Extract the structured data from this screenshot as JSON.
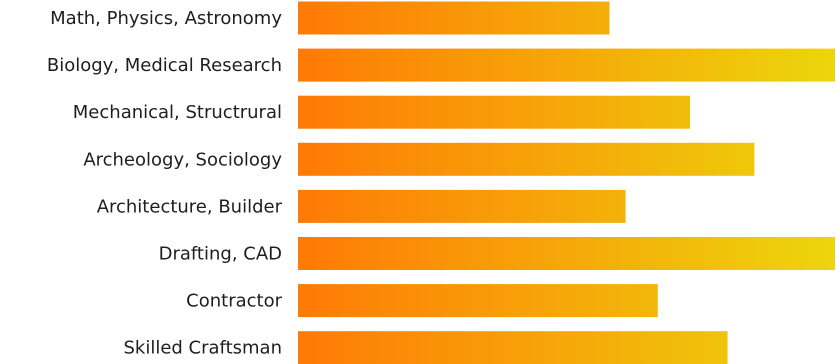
{
  "chart_data": {
    "type": "bar",
    "orientation": "horizontal",
    "categories": [
      "Math, Physics, Astronomy",
      "Biology, Medical Research",
      "Mechanical, Structrural",
      "Archeology, Sociology",
      "Architecture, Builder",
      "Drafting, CAD",
      "Contractor",
      "Skilled Craftsman"
    ],
    "values": [
      58,
      100,
      73,
      85,
      61,
      100,
      67,
      80
    ],
    "xlim": [
      0,
      100
    ],
    "title": "",
    "xlabel": "",
    "ylabel": "",
    "grid": false,
    "legend": "none",
    "colors": {
      "bar_start": "#ff7a06",
      "bar_end": "#ecd60c",
      "label": "#1e1e1e"
    }
  }
}
